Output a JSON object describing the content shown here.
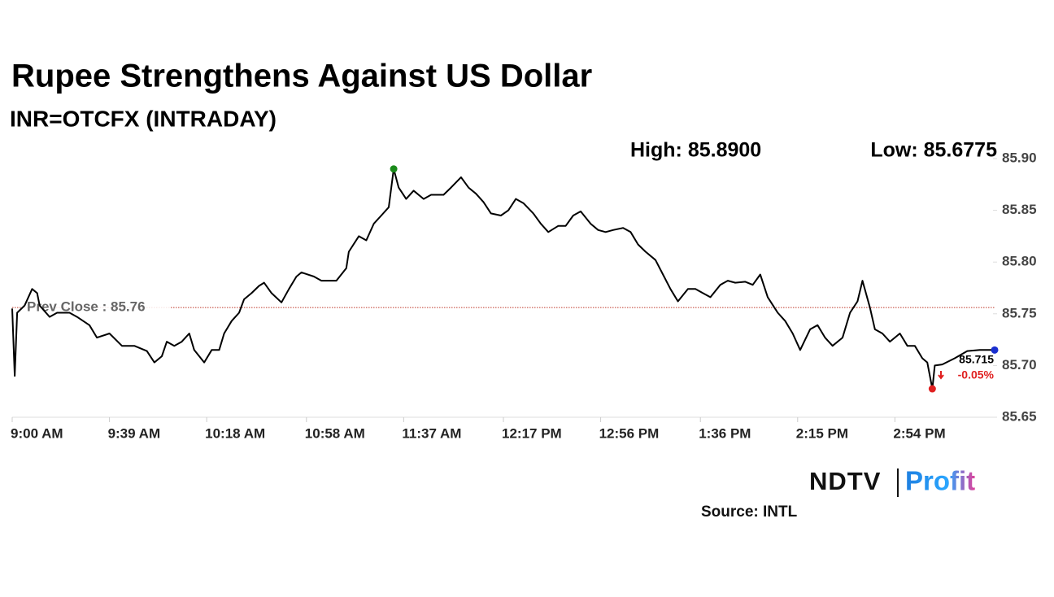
{
  "chart_data": {
    "type": "line",
    "title": "Rupee Strengthens Against US Dollar",
    "subtitle": "INR=OTCFX (INTRADAY)",
    "high_label": "High: 85.8900",
    "low_label": "Low: 85.6775",
    "reference_line": {
      "value": 85.756,
      "label": "Prev Close : 85.76",
      "color": "#c0392b"
    },
    "last_label": "85.715",
    "change_label": "-0.05%",
    "color": "#000000",
    "x": [
      "9:00 AM",
      "9:01 AM",
      "9:02 AM",
      "9:05 AM",
      "9:08 AM",
      "9:10 AM",
      "9:11 AM",
      "9:15 AM",
      "9:18 AM",
      "9:23 AM",
      "9:26 AM",
      "9:31 AM",
      "9:34 AM",
      "9:39 AM",
      "9:44 AM",
      "9:49 AM",
      "9:54 AM",
      "9:57 AM",
      "10:00 AM",
      "10:02 AM",
      "10:05 AM",
      "10:08 AM",
      "10:11 AM",
      "10:13 AM",
      "10:17 AM",
      "10:20 AM",
      "10:23 AM",
      "10:25 AM",
      "10:28 AM",
      "10:31 AM",
      "10:33 AM",
      "10:36 AM",
      "10:39 AM",
      "10:41 AM",
      "10:44 AM",
      "10:48 AM",
      "10:51 AM",
      "10:54 AM",
      "10:56 AM",
      "11:01 AM",
      "11:04 AM",
      "11:07 AM",
      "11:10 AM",
      "11:14 AM",
      "11:15 AM",
      "11:19 AM",
      "11:22 AM",
      "11:25 AM",
      "11:28 AM",
      "11:31 AM",
      "11:33 AM",
      "11:35 AM",
      "11:38 AM",
      "11:41 AM",
      "11:45 AM",
      "11:48 AM",
      "11:53 AM",
      "11:56 AM",
      "12:00 PM",
      "12:03 PM",
      "12:06 PM",
      "12:09 PM",
      "12:12 PM",
      "12:16 PM",
      "12:19 PM",
      "12:22 PM",
      "12:25 PM",
      "12:29 PM",
      "12:32 PM",
      "12:35 PM",
      "12:39 PM",
      "12:42 PM",
      "12:45 PM",
      "12:48 PM",
      "12:52 PM",
      "12:55 PM",
      "12:58 PM",
      "1:01 PM",
      "1:05 PM",
      "1:08 PM",
      "1:11 PM",
      "1:14 PM",
      "1:18 PM",
      "1:21 PM",
      "1:24 PM",
      "1:27 PM",
      "1:31 PM",
      "1:34 PM",
      "1:37 PM",
      "1:40 PM",
      "1:44 PM",
      "1:47 PM",
      "1:50 PM",
      "1:54 PM",
      "1:57 PM",
      "2:00 PM",
      "2:03 PM",
      "2:07 PM",
      "2:10 PM",
      "2:13 PM",
      "2:16 PM",
      "2:20 PM",
      "2:23 PM",
      "2:26 PM",
      "2:29 PM",
      "2:33 PM",
      "2:36 PM",
      "2:39 PM",
      "2:41 PM",
      "2:44 PM",
      "2:46 PM",
      "2:49 PM",
      "2:52 PM",
      "2:56 PM",
      "2:59 PM",
      "3:02 PM",
      "3:05 PM",
      "3:07 PM",
      "3:09 PM",
      "3:10 PM",
      "3:13 PM",
      "3:18 PM",
      "3:23 PM",
      "3:28 PM",
      "3:34 PM"
    ],
    "values": [
      85.755,
      85.69,
      85.751,
      85.758,
      85.774,
      85.77,
      85.758,
      85.747,
      85.751,
      85.751,
      85.747,
      85.739,
      85.727,
      85.731,
      85.719,
      85.719,
      85.714,
      85.703,
      85.709,
      85.723,
      85.719,
      85.723,
      85.731,
      85.715,
      85.703,
      85.715,
      85.715,
      85.731,
      85.743,
      85.751,
      85.764,
      85.77,
      85.777,
      85.78,
      85.77,
      85.761,
      85.774,
      85.786,
      85.79,
      85.786,
      85.782,
      85.782,
      85.782,
      85.794,
      85.81,
      85.825,
      85.821,
      85.837,
      85.845,
      85.853,
      85.89,
      85.872,
      85.861,
      85.869,
      85.861,
      85.865,
      85.865,
      85.872,
      85.882,
      85.872,
      85.866,
      85.858,
      85.847,
      85.845,
      85.85,
      85.861,
      85.857,
      85.847,
      85.837,
      85.829,
      85.835,
      85.835,
      85.845,
      85.849,
      85.837,
      85.831,
      85.829,
      85.831,
      85.833,
      85.829,
      85.817,
      85.81,
      85.802,
      85.788,
      85.774,
      85.762,
      85.774,
      85.774,
      85.77,
      85.766,
      85.778,
      85.782,
      85.78,
      85.781,
      85.778,
      85.788,
      85.766,
      85.751,
      85.743,
      85.731,
      85.715,
      85.735,
      85.739,
      85.727,
      85.719,
      85.727,
      85.751,
      85.762,
      85.782,
      85.756,
      85.735,
      85.731,
      85.723,
      85.731,
      85.719,
      85.719,
      85.707,
      85.703,
      85.6775,
      85.7,
      85.701,
      85.707,
      85.714,
      85.715,
      85.715
    ],
    "xlim": [
      "9:00 AM",
      "3:34 PM"
    ],
    "xticks": [
      "9:00 AM",
      "9:39 AM",
      "10:18 AM",
      "10:58 AM",
      "11:37 AM",
      "12:17 PM",
      "12:56 PM",
      "1:36 PM",
      "2:15 PM",
      "2:54 PM"
    ],
    "ylim": [
      85.65,
      85.9
    ],
    "yticks": [
      {
        "value": 85.65,
        "label": "85.65"
      },
      {
        "value": 85.7,
        "label": "85.70"
      },
      85.75,
      {
        "value": 85.8,
        "label": "85.80"
      },
      85.85,
      {
        "value": 85.9,
        "label": "85.90"
      }
    ],
    "high_color": "#1a8a1a",
    "low_color": "#e02020",
    "last_color": "#1a2fd0",
    "source": "Source: INTL",
    "logo": {
      "left": "NDTV",
      "right": "Profit"
    }
  }
}
